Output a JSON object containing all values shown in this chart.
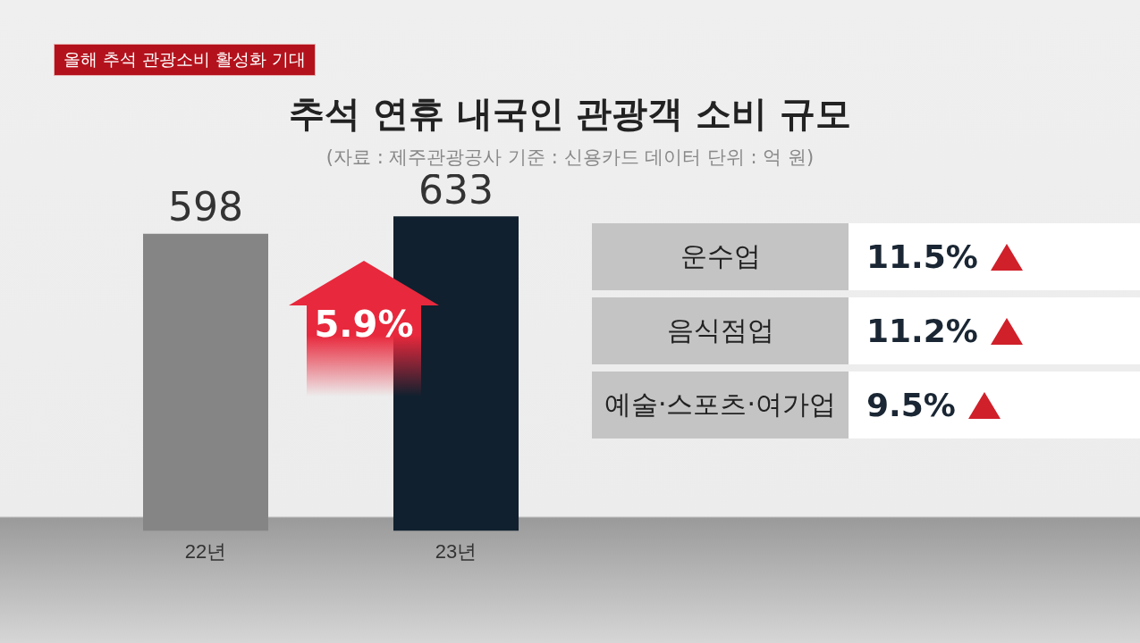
{
  "chart_data": [
    {
      "type": "bar",
      "title": "추석 연휴 내국인 관광객 소비 규모",
      "subtitle": "(자료 : 제주관광공사    기준 : 신용카드 데이터    단위 : 억 원)",
      "categories": [
        "22년",
        "23년"
      ],
      "values": [
        598,
        633
      ],
      "colors": [
        "#858585",
        "#10202e"
      ],
      "data_labels": true,
      "tick_labels": "x",
      "legend": false,
      "annotations": [
        "올해 추석 관광소비 활성화 기대",
        "5.9%"
      ]
    },
    {
      "type": "other",
      "categories": [
        "운수업",
        "음식점업",
        "예술·스포츠·여가업"
      ],
      "value_labels": [
        "11.5%",
        "11.2%",
        "9.5%"
      ]
    }
  ]
}
